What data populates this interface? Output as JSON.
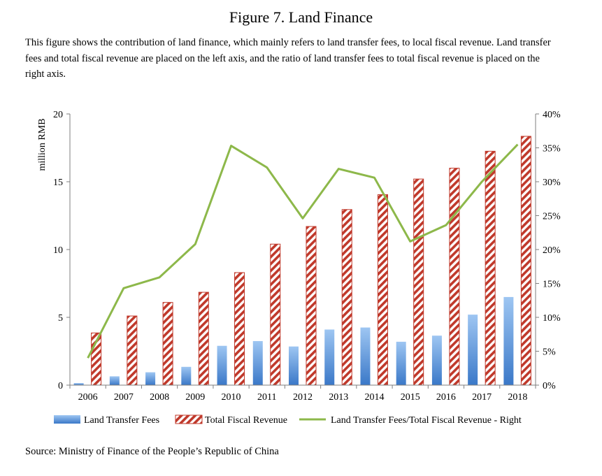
{
  "figure": {
    "title": "Figure 7. Land Finance",
    "caption": "This figure shows the contribution of land finance, which mainly refers to land transfer fees, to local fiscal revenue. Land transfer fees and total fiscal revenue are placed on the left axis, and the ratio of land transfer fees to total fiscal revenue is placed on the right axis.",
    "source": "Source: Ministry of Finance of the People’s Republic of China"
  },
  "colors": {
    "land_fee_top": "#9ec6f2",
    "land_fee_bottom": "#3a78c8",
    "fiscal_stripe": "#c0392b",
    "ratio_line": "#8db84a"
  },
  "chart_data": {
    "type": "bar",
    "categories": [
      "2006",
      "2007",
      "2008",
      "2009",
      "2010",
      "2011",
      "2012",
      "2013",
      "2014",
      "2015",
      "2016",
      "2017",
      "2018"
    ],
    "series": [
      {
        "name": "Land Transfer Fees",
        "kind": "bar",
        "axis": "left",
        "values": [
          0.15,
          0.65,
          0.95,
          1.35,
          2.9,
          3.25,
          2.85,
          4.1,
          4.25,
          3.2,
          3.65,
          5.2,
          6.5
        ]
      },
      {
        "name": "Total Fiscal Revenue",
        "kind": "bar",
        "axis": "left",
        "values": [
          3.85,
          5.1,
          6.1,
          6.85,
          8.3,
          10.4,
          11.7,
          12.95,
          14.05,
          15.2,
          16.0,
          17.25,
          18.35
        ]
      },
      {
        "name": "Land Transfer Fees/Total Fiscal Revenue - Right",
        "kind": "line",
        "axis": "right",
        "values": [
          4.0,
          14.3,
          15.9,
          20.8,
          35.3,
          32.1,
          24.6,
          31.9,
          30.6,
          21.2,
          23.6,
          30.0,
          35.5
        ]
      }
    ],
    "ylabel": "million RMB",
    "ylim": [
      0,
      20
    ],
    "yticks": [
      "0",
      "5",
      "10",
      "15",
      "20"
    ],
    "y2lim": [
      0,
      40
    ],
    "y2ticks": [
      "0%",
      "5%",
      "10%",
      "15%",
      "20%",
      "25%",
      "30%",
      "35%",
      "40%"
    ],
    "grid": false,
    "legend_position": "bottom"
  }
}
